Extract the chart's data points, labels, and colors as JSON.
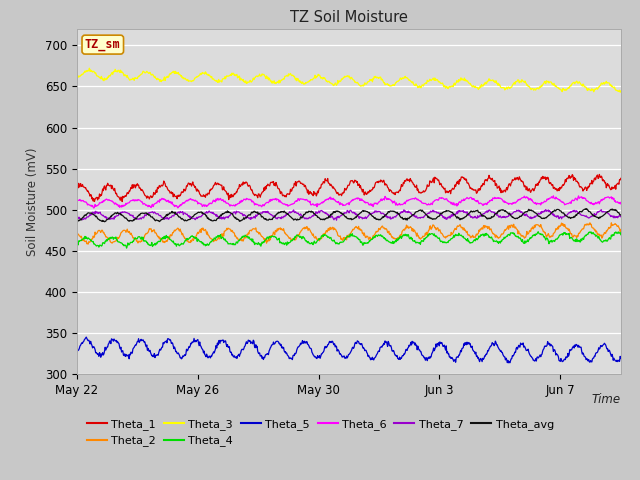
{
  "title": "TZ Soil Moisture",
  "ylabel": "Soil Moisture (mV)",
  "xlabel": "Time",
  "legend_label": "TZ_sm",
  "plot_bg": "#dcdcdc",
  "fig_bg": "#c8c8c8",
  "ylim": [
    300,
    720
  ],
  "yticks": [
    300,
    350,
    400,
    450,
    500,
    550,
    600,
    650,
    700
  ],
  "n_days": 18,
  "xtick_dates": [
    "May 22",
    "May 26",
    "May 30",
    "Jun 3",
    "Jun 7"
  ],
  "xtick_days": [
    0,
    4,
    8,
    12,
    16
  ],
  "series_order": [
    "Theta_1",
    "Theta_2",
    "Theta_3",
    "Theta_4",
    "Theta_5",
    "Theta_6",
    "Theta_7",
    "Theta_avg"
  ],
  "series": {
    "Theta_1": {
      "color": "#dd0000",
      "base": 521,
      "amp": 8,
      "trend": 0.7,
      "period": 0.9,
      "noise": 1.5
    },
    "Theta_2": {
      "color": "#ff8800",
      "base": 467,
      "amp": 7,
      "trend": 0.5,
      "period": 0.85,
      "noise": 1.2
    },
    "Theta_3": {
      "color": "#ffff00",
      "base": 665,
      "amp": 5,
      "trend": -0.9,
      "period": 0.95,
      "noise": 1.0
    },
    "Theta_4": {
      "color": "#00dd00",
      "base": 461,
      "amp": 5,
      "trend": 0.35,
      "period": 0.88,
      "noise": 1.0
    },
    "Theta_5": {
      "color": "#0000cc",
      "base": 333,
      "amp": 10,
      "trend": -0.4,
      "period": 0.9,
      "noise": 1.5
    },
    "Theta_6": {
      "color": "#ff00ff",
      "base": 508,
      "amp": 4,
      "trend": 0.2,
      "period": 0.92,
      "noise": 0.8
    },
    "Theta_7": {
      "color": "#9900cc",
      "base": 493,
      "amp": 4,
      "trend": 0.1,
      "period": 0.93,
      "noise": 0.8
    },
    "Theta_avg": {
      "color": "#111111",
      "base": 491,
      "amp": 5,
      "trend": 0.25,
      "period": 0.91,
      "noise": 0.6
    }
  },
  "legend_row1": [
    "Theta_1",
    "Theta_2",
    "Theta_3",
    "Theta_4",
    "Theta_5",
    "Theta_6"
  ],
  "legend_row2": [
    "Theta_7",
    "Theta_avg"
  ]
}
